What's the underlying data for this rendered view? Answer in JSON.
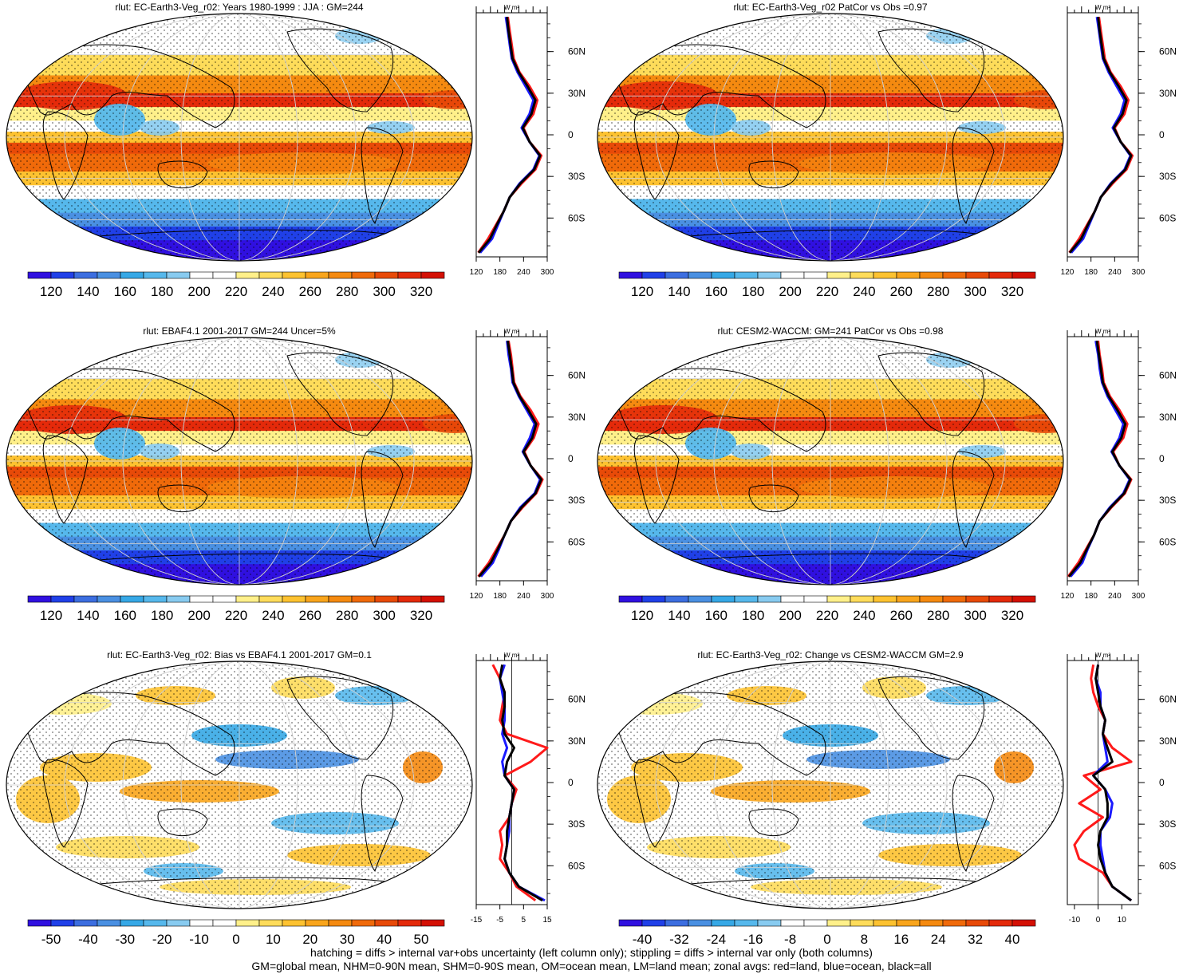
{
  "panels": [
    {
      "title": "rlut: EC-Earth3-Veg_r02: Years 1980-1999 : JJA : GM=244",
      "kind": "abs",
      "colorbar_labels": [
        "120",
        "140",
        "160",
        "180",
        "200",
        "220",
        "240",
        "260",
        "280",
        "300",
        "320"
      ],
      "zonal": {
        "unit": "W m²",
        "xticks": [
          "120",
          "180",
          "240",
          "300"
        ],
        "xlim": [
          120,
          300
        ],
        "lat_labels": [
          "60N",
          "30N",
          "0",
          "30S",
          "60S"
        ],
        "lat_values": [
          60,
          30,
          0,
          -30,
          -60
        ]
      }
    },
    {
      "title": "rlut: EC-Earth3-Veg_r02 PatCor vs Obs =0.97",
      "kind": "abs",
      "colorbar_labels": [
        "120",
        "140",
        "160",
        "180",
        "200",
        "220",
        "240",
        "260",
        "280",
        "300",
        "320"
      ],
      "zonal": {
        "unit": "W m²",
        "xticks": [
          "120",
          "180",
          "240",
          "300"
        ],
        "xlim": [
          120,
          300
        ],
        "lat_labels": [
          "60N",
          "30N",
          "0",
          "30S",
          "60S"
        ],
        "lat_values": [
          60,
          30,
          0,
          -30,
          -60
        ]
      }
    },
    {
      "title": "rlut: EBAF4.1 2001-2017 GM=244 Uncer=5%",
      "kind": "abs",
      "colorbar_labels": [
        "120",
        "140",
        "160",
        "180",
        "200",
        "220",
        "240",
        "260",
        "280",
        "300",
        "320"
      ],
      "zonal": {
        "unit": "W m²",
        "xticks": [
          "120",
          "180",
          "240",
          "300"
        ],
        "xlim": [
          120,
          300
        ],
        "lat_labels": [
          "60N",
          "30N",
          "0",
          "30S",
          "60S"
        ],
        "lat_values": [
          60,
          30,
          0,
          -30,
          -60
        ]
      }
    },
    {
      "title": "rlut: CESM2-WACCM: GM=241 PatCor vs Obs =0.98",
      "kind": "abs",
      "colorbar_labels": [
        "120",
        "140",
        "160",
        "180",
        "200",
        "220",
        "240",
        "260",
        "280",
        "300",
        "320"
      ],
      "zonal": {
        "unit": "W m²",
        "xticks": [
          "120",
          "180",
          "240",
          "300"
        ],
        "xlim": [
          120,
          300
        ],
        "lat_labels": [
          "60N",
          "30N",
          "0",
          "30S",
          "60S"
        ],
        "lat_values": [
          60,
          30,
          0,
          -30,
          -60
        ]
      }
    },
    {
      "title": "rlut: EC-Earth3-Veg_r02: Bias vs EBAF4.1 2001-2017 GM=0.1",
      "kind": "diff",
      "colorbar_labels": [
        "-50",
        "-40",
        "-30",
        "-20",
        "-10",
        "0",
        "10",
        "20",
        "30",
        "40",
        "50"
      ],
      "zonal": {
        "unit": "W m²",
        "xticks": [
          "-15",
          "-5",
          "5",
          "15"
        ],
        "xlim": [
          -15,
          15
        ],
        "lat_labels": [
          "60N",
          "30N",
          "0",
          "30S",
          "60S"
        ],
        "lat_values": [
          60,
          30,
          0,
          -30,
          -60
        ]
      }
    },
    {
      "title": "rlut: EC-Earth3-Veg_r02: Change vs CESM2-WACCM GM=2.9",
      "kind": "diff",
      "colorbar_labels": [
        "-40",
        "-32",
        "-24",
        "-16",
        "-8",
        "0",
        "8",
        "16",
        "24",
        "32",
        "40"
      ],
      "zonal": {
        "unit": "W m²",
        "xticks": [
          "-10",
          "0",
          "10"
        ],
        "xlim": [
          -13,
          17
        ],
        "lat_labels": [
          "60N",
          "30N",
          "0",
          "30S",
          "60S"
        ],
        "lat_values": [
          60,
          30,
          0,
          -30,
          -60
        ]
      }
    }
  ],
  "colors": {
    "abs_palette": [
      "#3010e0",
      "#2040e8",
      "#3c6ee0",
      "#4a90e2",
      "#36a8e6",
      "#56b8ec",
      "#88cbf0",
      "#ffffff",
      "#ffffff",
      "#fff08a",
      "#fedc5a",
      "#fdc230",
      "#f9a51c",
      "#f58a10",
      "#f06a0a",
      "#e84a08",
      "#e42a0a",
      "#d41004"
    ],
    "diff_palette": [
      "#3010e0",
      "#2040e8",
      "#3c6ee0",
      "#4a90e2",
      "#36a8e6",
      "#56b8ec",
      "#88cbf0",
      "#ffffff",
      "#ffffff",
      "#fff08a",
      "#fedc5a",
      "#fdc230",
      "#f9a51c",
      "#f58a10",
      "#f06a0a",
      "#e84a08",
      "#e42a0a",
      "#d41004"
    ],
    "land_line": "#ff1a1a",
    "ocean_line": "#1a1aff",
    "all_line": "#000000"
  },
  "chart_data": [
    {
      "type": "line",
      "title": "rlut: EC-Earth3-Veg_r02: Years 1980-1999 : JJA : GM=244",
      "xlabel": "W m²",
      "ylabel": "",
      "xlim": [
        120,
        300
      ],
      "lat": [
        -85,
        -75,
        -65,
        -55,
        -45,
        -35,
        -25,
        -15,
        -5,
        5,
        15,
        25,
        35,
        45,
        55,
        65,
        75,
        85
      ],
      "series": [
        {
          "values": [
            125,
            150,
            170,
            190,
            205,
            235,
            270,
            285,
            255,
            240,
            265,
            275,
            255,
            230,
            215,
            210,
            205,
            200
          ]
        },
        {
          "values": [
            130,
            160,
            175,
            190,
            205,
            230,
            265,
            280,
            255,
            235,
            255,
            265,
            245,
            225,
            210,
            205,
            200,
            195
          ]
        },
        {
          "values": [
            126,
            155,
            172,
            190,
            205,
            232,
            267,
            282,
            255,
            238,
            260,
            270,
            250,
            228,
            212,
            207,
            202,
            198
          ]
        }
      ]
    },
    {
      "type": "line",
      "title": "rlut: EC-Earth3-Veg_r02 PatCor vs Obs =0.97",
      "xlabel": "W m²",
      "ylabel": "",
      "xlim": [
        120,
        300
      ],
      "lat": [
        -85,
        -75,
        -65,
        -55,
        -45,
        -35,
        -25,
        -15,
        -5,
        5,
        15,
        25,
        35,
        45,
        55,
        65,
        75,
        85
      ],
      "series": [
        {
          "values": [
            125,
            150,
            170,
            190,
            205,
            235,
            270,
            285,
            255,
            240,
            265,
            275,
            255,
            230,
            215,
            210,
            205,
            200
          ]
        },
        {
          "values": [
            130,
            160,
            175,
            190,
            205,
            230,
            265,
            280,
            255,
            235,
            255,
            265,
            245,
            225,
            210,
            205,
            200,
            195
          ]
        },
        {
          "values": [
            126,
            155,
            172,
            190,
            205,
            232,
            267,
            282,
            255,
            238,
            260,
            270,
            250,
            228,
            212,
            207,
            202,
            198
          ]
        }
      ]
    },
    {
      "type": "line",
      "title": "rlut: EBAF4.1 2001-2017 GM=244 Uncer=5%",
      "xlabel": "W m²",
      "ylabel": "",
      "xlim": [
        120,
        300
      ],
      "lat": [
        -85,
        -75,
        -65,
        -55,
        -45,
        -35,
        -25,
        -15,
        -5,
        5,
        15,
        25,
        35,
        45,
        55,
        65,
        75,
        85
      ],
      "series": [
        {
          "values": [
            125,
            152,
            172,
            192,
            208,
            238,
            272,
            288,
            258,
            242,
            266,
            278,
            258,
            232,
            216,
            212,
            208,
            202
          ]
        },
        {
          "values": [
            132,
            162,
            178,
            192,
            208,
            232,
            268,
            282,
            258,
            238,
            256,
            268,
            248,
            228,
            212,
            208,
            202,
            198
          ]
        },
        {
          "values": [
            127,
            157,
            175,
            192,
            208,
            235,
            270,
            285,
            258,
            240,
            262,
            272,
            252,
            230,
            214,
            210,
            205,
            200
          ]
        }
      ]
    },
    {
      "type": "line",
      "title": "rlut: CESM2-WACCM: GM=241 PatCor vs Obs =0.98",
      "xlabel": "W m²",
      "ylabel": "",
      "xlim": [
        120,
        300
      ],
      "lat": [
        -85,
        -75,
        -65,
        -55,
        -45,
        -35,
        -25,
        -15,
        -5,
        5,
        15,
        25,
        35,
        45,
        55,
        65,
        75,
        85
      ],
      "series": [
        {
          "values": [
            122,
            148,
            168,
            188,
            202,
            232,
            266,
            282,
            252,
            236,
            262,
            272,
            252,
            228,
            212,
            208,
            202,
            198
          ]
        },
        {
          "values": [
            128,
            158,
            172,
            188,
            202,
            228,
            262,
            278,
            252,
            232,
            252,
            262,
            242,
            222,
            208,
            202,
            198,
            192
          ]
        },
        {
          "values": [
            124,
            153,
            170,
            188,
            202,
            230,
            264,
            280,
            252,
            234,
            257,
            267,
            247,
            225,
            210,
            205,
            200,
            195
          ]
        }
      ]
    },
    {
      "type": "line",
      "title": "rlut: EC-Earth3-Veg_r02: Bias vs EBAF4.1 2001-2017 GM=0.1",
      "xlabel": "W m²",
      "ylabel": "",
      "xlim": [
        -15,
        15
      ],
      "lat": [
        -85,
        -75,
        -65,
        -55,
        -45,
        -35,
        -25,
        -15,
        -5,
        5,
        15,
        25,
        35,
        45,
        55,
        65,
        75,
        85
      ],
      "series": [
        {
          "values": [
            10,
            2,
            -1,
            -5,
            -4,
            -5,
            -1,
            0,
            2,
            -3,
            8,
            15,
            -2,
            -5,
            -4,
            -3,
            -5,
            -8
          ]
        },
        {
          "values": [
            14,
            3,
            -1,
            -3,
            -2,
            -1,
            -1,
            0,
            1,
            -3,
            -4,
            -2,
            -4,
            -3,
            -3,
            -4,
            -5,
            -3
          ]
        },
        {
          "values": [
            13,
            3,
            -1,
            -3,
            -2,
            -2,
            -1,
            0,
            1,
            -3,
            -2,
            1,
            -3,
            -4,
            -3,
            -3,
            -5,
            -4
          ]
        }
      ]
    },
    {
      "type": "line",
      "title": "rlut: EC-Earth3-Veg_r02: Change vs CESM2-WACCM GM=2.9",
      "xlabel": "W m²",
      "ylabel": "",
      "xlim": [
        -13,
        17
      ],
      "lat": [
        -85,
        -75,
        -65,
        -55,
        -45,
        -35,
        -25,
        -15,
        -5,
        5,
        15,
        25,
        35,
        45,
        55,
        65,
        75,
        85
      ],
      "series": [
        {
          "values": [
            14,
            6,
            2,
            -8,
            -10,
            -6,
            2,
            -8,
            1,
            -6,
            14,
            6,
            2,
            3,
            0,
            -2,
            -3,
            -2
          ]
        },
        {
          "values": [
            14,
            6,
            3,
            2,
            1,
            1,
            5,
            6,
            3,
            -2,
            4,
            3,
            2,
            3,
            1,
            1,
            -1,
            0
          ]
        },
        {
          "values": [
            14,
            6,
            3,
            1,
            0,
            1,
            4,
            4,
            3,
            -2,
            6,
            4,
            2,
            3,
            1,
            0,
            -1,
            0
          ]
        }
      ]
    }
  ],
  "footer": {
    "line1": "hatching = diffs > internal var+obs uncertainty (left column only); stippling = diffs > internal var only (both columns)",
    "line2": "GM=global mean, NHM=0-90N mean, SHM=0-90S mean, OM=ocean mean, LM=land mean; zonal avgs: red=land, blue=ocean, black=all"
  }
}
